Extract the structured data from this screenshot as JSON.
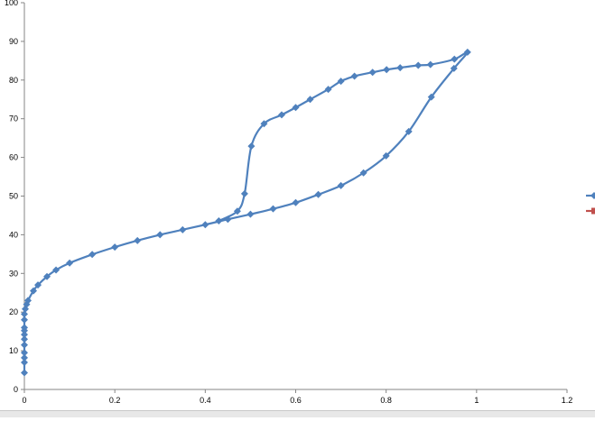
{
  "chart_data": {
    "type": "scatter",
    "title": "",
    "xlabel": "",
    "ylabel": "",
    "xlim": [
      0,
      1.2
    ],
    "ylim": [
      0,
      100
    ],
    "x_ticks": [
      "0",
      "0.2",
      "0.4",
      "0.6",
      "0.8",
      "1",
      "1.2"
    ],
    "y_ticks": [
      "0",
      "10",
      "20",
      "30",
      "40",
      "50",
      "60",
      "70",
      "80",
      "90",
      "100"
    ],
    "grid": false,
    "legend": "right",
    "line_style": "smooth with diamond markers",
    "series": [
      {
        "color": "#4f81bd",
        "points": [
          [
            0.0,
            4.3
          ],
          [
            0.0,
            7.0
          ],
          [
            0.0,
            8.2
          ],
          [
            0.0,
            9.5
          ],
          [
            0.0,
            11.5
          ],
          [
            0.0,
            13.0
          ],
          [
            0.0,
            14.2
          ],
          [
            0.0,
            15.2
          ],
          [
            0.0,
            16.0
          ],
          [
            0.0,
            18.0
          ],
          [
            0.0,
            19.5
          ],
          [
            0.002,
            20.8
          ],
          [
            0.005,
            22.0
          ],
          [
            0.008,
            23.0
          ],
          [
            0.02,
            25.5
          ],
          [
            0.03,
            27.0
          ],
          [
            0.05,
            29.2
          ],
          [
            0.07,
            30.9
          ],
          [
            0.1,
            32.7
          ],
          [
            0.15,
            34.9
          ],
          [
            0.2,
            36.8
          ],
          [
            0.25,
            38.5
          ],
          [
            0.3,
            40.0
          ],
          [
            0.35,
            41.3
          ],
          [
            0.4,
            42.6
          ],
          [
            0.45,
            44.0
          ],
          [
            0.5,
            45.3
          ],
          [
            0.55,
            46.7
          ],
          [
            0.6,
            48.3
          ],
          [
            0.65,
            50.4
          ],
          [
            0.7,
            52.7
          ],
          [
            0.75,
            56.0
          ],
          [
            0.8,
            60.4
          ],
          [
            0.85,
            66.7
          ],
          [
            0.9,
            75.6
          ],
          [
            0.95,
            83.0
          ],
          [
            0.98,
            87.2
          ],
          [
            0.951,
            85.4
          ],
          [
            0.898,
            84.0
          ],
          [
            0.871,
            83.8
          ],
          [
            0.831,
            83.2
          ],
          [
            0.801,
            82.7
          ],
          [
            0.77,
            82.0
          ],
          [
            0.73,
            81.0
          ],
          [
            0.7,
            79.7
          ],
          [
            0.672,
            77.6
          ],
          [
            0.632,
            75.0
          ],
          [
            0.6,
            72.9
          ],
          [
            0.569,
            71.0
          ],
          [
            0.53,
            68.7
          ],
          [
            0.502,
            62.9
          ],
          [
            0.487,
            50.6
          ],
          [
            0.471,
            46.1
          ],
          [
            0.43,
            43.6
          ]
        ]
      },
      {
        "color": "#c0504d",
        "points": []
      }
    ]
  }
}
